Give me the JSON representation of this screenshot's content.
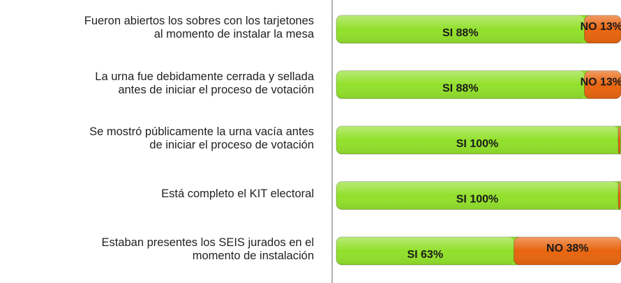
{
  "chart_data": {
    "type": "stacked-barh",
    "categories": [
      "Fueron abiertos los sobres con los tarjetones\nal momento de instalar la mesa",
      "La urna fue debidamente cerrada y sellada\nantes de iniciar el proceso de votación",
      "Se mostró públicamente la urna vacía antes\nde iniciar el proceso de votación",
      "Está completo el KIT electoral",
      "Estaban presentes los SEIS jurados en el\nmomento de instalación"
    ],
    "series": [
      {
        "color": "#92e02c",
        "values": [
          88,
          88,
          100,
          100,
          63
        ],
        "value_labels": [
          "SI 88%",
          "SI 88%",
          "SI 100%",
          "SI 100%",
          "SI 63%"
        ]
      },
      {
        "color": "#e8650f",
        "values": [
          13,
          13,
          0,
          0,
          38
        ],
        "value_labels": [
          "NO 13%",
          "NO 13%",
          null,
          null,
          "NO 38%"
        ]
      }
    ],
    "xlim": [
      0,
      100
    ]
  }
}
